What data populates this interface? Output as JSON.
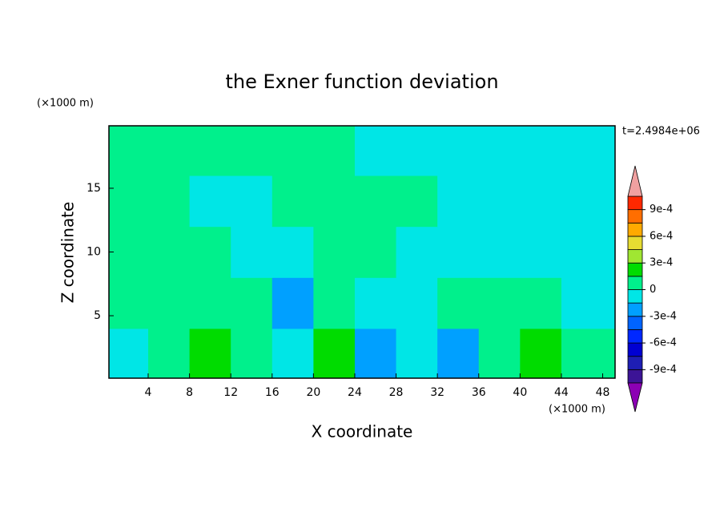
{
  "chart_data": {
    "type": "contour",
    "title": "the Exner function deviation",
    "x_label": "X coordinate",
    "y_label": "Z coordinate",
    "x_unit": "(×1000 m)",
    "y_unit": "(×1000 m)",
    "annotation": "t=2.4984e+06",
    "xlim": [
      0.2,
      49.2
    ],
    "ylim": [
      0.1,
      19.9
    ],
    "xticks": [
      4,
      8,
      12,
      16,
      20,
      24,
      28,
      32,
      36,
      40,
      44,
      48
    ],
    "yticks": [
      5,
      10,
      15
    ],
    "x": [
      2,
      6,
      10,
      14,
      18,
      22,
      26,
      30,
      34,
      38,
      42,
      46
    ],
    "z": [
      2,
      6,
      10,
      14,
      18
    ],
    "values": [
      [
        -5e-05,
        5e-05,
        0.00022,
        5e-05,
        -5e-05,
        0.00022,
        -0.00022,
        -5e-05,
        -0.00022,
        5e-05,
        0.00022,
        5e-05
      ],
      [
        5e-05,
        5e-05,
        5e-05,
        5e-05,
        -0.00022,
        5e-05,
        -5e-05,
        -5e-05,
        5e-05,
        5e-05,
        5e-05,
        -5e-05
      ],
      [
        5e-05,
        5e-05,
        5e-05,
        -5e-05,
        -5e-05,
        5e-05,
        5e-05,
        -5e-05,
        -5e-05,
        -5e-05,
        -5e-05,
        -5e-05
      ],
      [
        5e-05,
        5e-05,
        -5e-05,
        -5e-05,
        5e-05,
        5e-05,
        5e-05,
        5e-05,
        -5e-05,
        -5e-05,
        -5e-05,
        -5e-05
      ],
      [
        5e-05,
        5e-05,
        5e-05,
        5e-05,
        5e-05,
        5e-05,
        -5e-05,
        -5e-05,
        -5e-05,
        -5e-05,
        -5e-05,
        -5e-05
      ]
    ],
    "colorbar": {
      "levels": [
        -0.00105,
        -0.0009,
        -0.00075,
        -0.0006,
        -0.00045,
        -0.0003,
        -0.00015,
        0,
        0.00015,
        0.0003,
        0.00045,
        0.0006,
        0.00075,
        0.0009,
        0.00105
      ],
      "colors": [
        "#3c1496",
        "#1e1eb4",
        "#0000d2",
        "#0028ff",
        "#0064ff",
        "#00a0ff",
        "#00e6e6",
        "#00f08c",
        "#00dc00",
        "#a0e632",
        "#e6dc32",
        "#ffaa00",
        "#ff6e00",
        "#ff2800"
      ],
      "under_color": "#8c00b4",
      "over_color": "#f0a0a0",
      "ticks": [
        {
          "value": 0.0009,
          "label": "9e-4"
        },
        {
          "value": 0.0006,
          "label": "6e-4"
        },
        {
          "value": 0.0003,
          "label": "3e-4"
        },
        0,
        {
          "value": -0.0003,
          "label": "-3e-4"
        },
        {
          "value": -0.0006,
          "label": "-6e-4"
        },
        {
          "value": -0.0009,
          "label": "-9e-4"
        }
      ]
    }
  }
}
